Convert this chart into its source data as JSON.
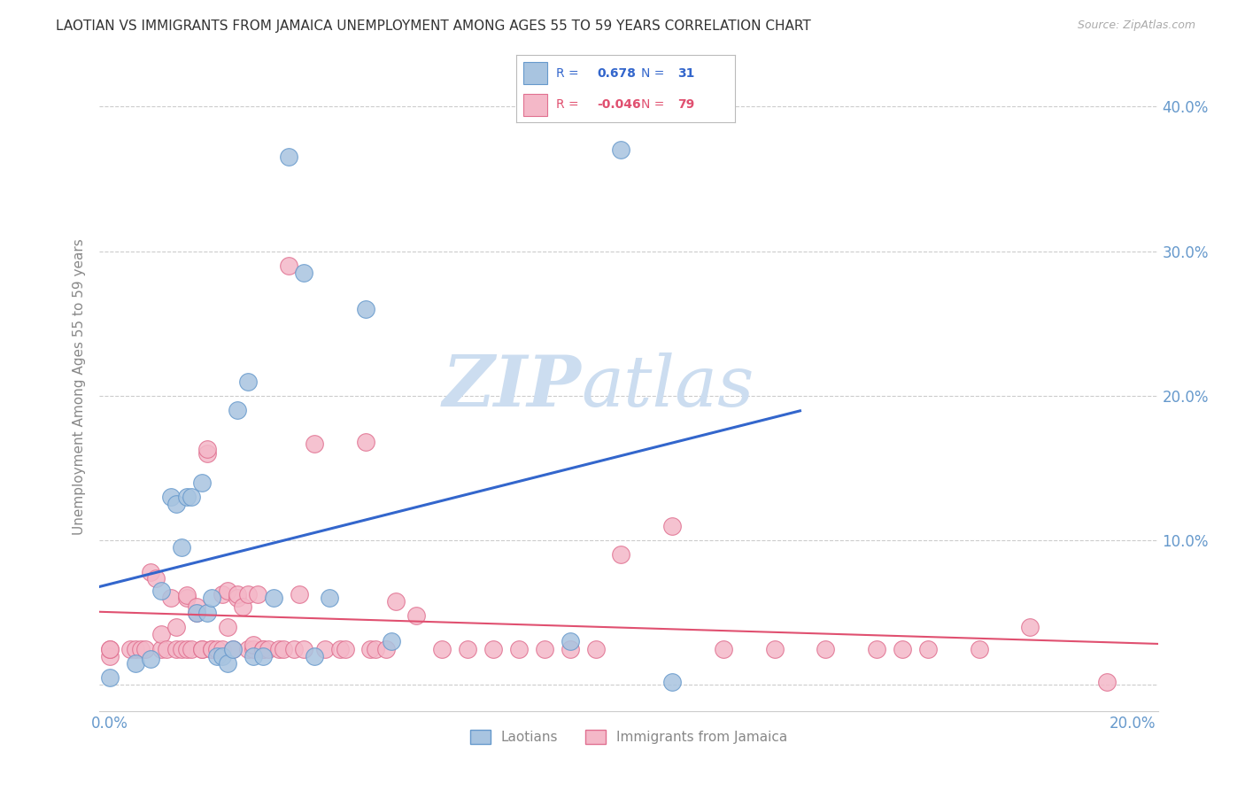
{
  "title": "LAOTIAN VS IMMIGRANTS FROM JAMAICA UNEMPLOYMENT AMONG AGES 55 TO 59 YEARS CORRELATION CHART",
  "source": "Source: ZipAtlas.com",
  "ylabel": "Unemployment Among Ages 55 to 59 years",
  "xlim": [
    -0.002,
    0.205
  ],
  "ylim": [
    -0.018,
    0.43
  ],
  "xticks": [
    0.0,
    0.05,
    0.1,
    0.15,
    0.2
  ],
  "xticklabels": [
    "0.0%",
    "",
    "",
    "",
    "20.0%"
  ],
  "yticks": [
    0.0,
    0.1,
    0.2,
    0.3,
    0.4
  ],
  "right_yticklabels": [
    "",
    "10.0%",
    "20.0%",
    "30.0%",
    "40.0%"
  ],
  "laotian_color": "#a8c4e0",
  "laotian_edge_color": "#6699cc",
  "jamaica_color": "#f4b8c8",
  "jamaica_edge_color": "#e07090",
  "trend_laotian_color": "#3366cc",
  "trend_jamaica_color": "#e05070",
  "R_laotian": 0.678,
  "N_laotian": 31,
  "R_jamaica": -0.046,
  "N_jamaica": 79,
  "watermark_zip": "ZIP",
  "watermark_atlas": "atlas",
  "watermark_color": "#ccddf0",
  "grid_color": "#cccccc",
  "title_color": "#333333",
  "axis_label_color": "#888888",
  "tick_label_color": "#6699cc",
  "legend_label1": "Laotians",
  "legend_label2": "Immigrants from Jamaica",
  "laotian_x": [
    0.0,
    0.005,
    0.008,
    0.01,
    0.012,
    0.013,
    0.014,
    0.015,
    0.016,
    0.017,
    0.018,
    0.019,
    0.02,
    0.021,
    0.022,
    0.023,
    0.024,
    0.025,
    0.027,
    0.028,
    0.03,
    0.032,
    0.035,
    0.038,
    0.04,
    0.043,
    0.05,
    0.055,
    0.09,
    0.1,
    0.11
  ],
  "laotian_y": [
    0.005,
    0.015,
    0.018,
    0.065,
    0.13,
    0.125,
    0.095,
    0.13,
    0.13,
    0.05,
    0.14,
    0.05,
    0.06,
    0.02,
    0.02,
    0.015,
    0.025,
    0.19,
    0.21,
    0.02,
    0.02,
    0.06,
    0.365,
    0.285,
    0.02,
    0.06,
    0.26,
    0.03,
    0.03,
    0.37,
    0.002
  ],
  "jamaica_x": [
    0.0,
    0.0,
    0.0,
    0.004,
    0.005,
    0.006,
    0.007,
    0.008,
    0.009,
    0.01,
    0.01,
    0.011,
    0.012,
    0.013,
    0.013,
    0.014,
    0.015,
    0.015,
    0.015,
    0.016,
    0.017,
    0.017,
    0.018,
    0.018,
    0.019,
    0.019,
    0.02,
    0.02,
    0.021,
    0.022,
    0.022,
    0.023,
    0.023,
    0.024,
    0.025,
    0.025,
    0.026,
    0.027,
    0.027,
    0.028,
    0.028,
    0.029,
    0.03,
    0.03,
    0.031,
    0.033,
    0.034,
    0.035,
    0.036,
    0.037,
    0.038,
    0.04,
    0.042,
    0.045,
    0.046,
    0.05,
    0.051,
    0.052,
    0.054,
    0.056,
    0.06,
    0.065,
    0.07,
    0.075,
    0.08,
    0.085,
    0.09,
    0.095,
    0.1,
    0.11,
    0.12,
    0.13,
    0.14,
    0.15,
    0.155,
    0.16,
    0.17,
    0.18,
    0.195
  ],
  "jamaica_y": [
    0.02,
    0.025,
    0.025,
    0.025,
    0.025,
    0.025,
    0.025,
    0.078,
    0.074,
    0.025,
    0.035,
    0.025,
    0.06,
    0.025,
    0.04,
    0.025,
    0.025,
    0.06,
    0.062,
    0.025,
    0.05,
    0.054,
    0.025,
    0.025,
    0.16,
    0.163,
    0.025,
    0.025,
    0.025,
    0.025,
    0.063,
    0.04,
    0.065,
    0.025,
    0.06,
    0.063,
    0.054,
    0.063,
    0.025,
    0.025,
    0.028,
    0.063,
    0.025,
    0.025,
    0.025,
    0.025,
    0.025,
    0.29,
    0.025,
    0.063,
    0.025,
    0.167,
    0.025,
    0.025,
    0.025,
    0.168,
    0.025,
    0.025,
    0.025,
    0.058,
    0.048,
    0.025,
    0.025,
    0.025,
    0.025,
    0.025,
    0.025,
    0.025,
    0.09,
    0.11,
    0.025,
    0.025,
    0.025,
    0.025,
    0.025,
    0.025,
    0.025,
    0.04,
    0.002
  ]
}
